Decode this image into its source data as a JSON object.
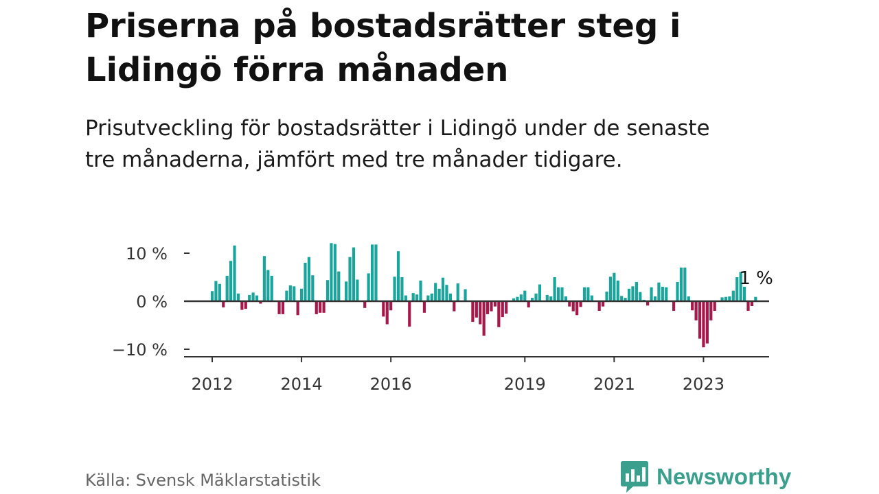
{
  "title": "Priserna på bostadsrätter steg i Lidingö förra månaden",
  "subtitle": "Prisutveckling för bostadsrätter i Lidingö under de senaste tre månaderna, jämfört med tre månader tidigare.",
  "source": "Källa: Svensk Mäklarstatistik",
  "brand": {
    "name": "Newsworthy",
    "icon": "newsworthy-logo-icon",
    "color": "#3a9f8c"
  },
  "colors": {
    "positive": "#1aa59c",
    "negative": "#a5194a",
    "axis": "#333333"
  },
  "chart_data": {
    "type": "bar",
    "unit": "%",
    "y_ticks": [
      {
        "value": 10,
        "label": "10 %"
      },
      {
        "value": 0,
        "label": "0 %"
      },
      {
        "value": -10,
        "label": "−10 %"
      }
    ],
    "x_ticks": [
      {
        "year": 2012,
        "label": "2012"
      },
      {
        "year": 2014,
        "label": "2014"
      },
      {
        "year": 2016,
        "label": "2016"
      },
      {
        "year": 2019,
        "label": "2019"
      },
      {
        "year": 2021,
        "label": "2021"
      },
      {
        "year": 2023,
        "label": "2023"
      }
    ],
    "ylim": [
      -11.5,
      12
    ],
    "start": "2012-01",
    "end_label": "1 %",
    "values": [
      2.1,
      4.2,
      3.6,
      -1.3,
      5.3,
      8.4,
      11.6,
      1.6,
      -1.8,
      -1.6,
      1.3,
      1.8,
      1.2,
      -0.5,
      9.4,
      6.5,
      5.3,
      0,
      -2.7,
      -2.7,
      2.2,
      3.3,
      3.1,
      -2.9,
      2.6,
      8.0,
      9.2,
      5.4,
      -2.7,
      -2.4,
      -2.4,
      4.4,
      12.1,
      11.9,
      6.2,
      0,
      4.1,
      9.2,
      11.2,
      4.5,
      0,
      -1.4,
      5.8,
      11.8,
      11.8,
      0,
      -3.2,
      -4.8,
      -1.9,
      5.1,
      10.4,
      5.0,
      1.2,
      -5.3,
      1.7,
      1.4,
      4.3,
      -2.4,
      1.2,
      1.6,
      3.8,
      2.6,
      4.9,
      3.4,
      1.6,
      -2.1,
      3.7,
      0,
      2.5,
      0,
      -4.3,
      -3.4,
      -4.8,
      -7.2,
      -2.7,
      -2.1,
      -1.1,
      -5.4,
      -3.3,
      -2.6,
      0,
      0.6,
      0.9,
      1.4,
      2.2,
      -1.3,
      0.7,
      1.6,
      3.5,
      0,
      1.3,
      1.0,
      5.0,
      2.9,
      2.9,
      1.0,
      -1.1,
      -2.1,
      -2.9,
      -1.2,
      2.9,
      2.9,
      1.2,
      0,
      -2.0,
      -1.1,
      2.0,
      5.1,
      5.9,
      4.3,
      1.1,
      0.7,
      2.6,
      3.1,
      4.0,
      1.9,
      0.3,
      -0.9,
      2.9,
      1.0,
      3.9,
      3.0,
      2.9,
      0,
      -2.0,
      4.0,
      7.0,
      7.0,
      1.0,
      -1.9,
      -4.0,
      -7.8,
      -9.6,
      -8.8,
      -4.0,
      -2.0,
      0,
      0.8,
      0.9,
      1.0,
      2.2,
      5.0,
      6.1,
      3.0,
      -2.0,
      -1.0,
      0.9
    ]
  }
}
